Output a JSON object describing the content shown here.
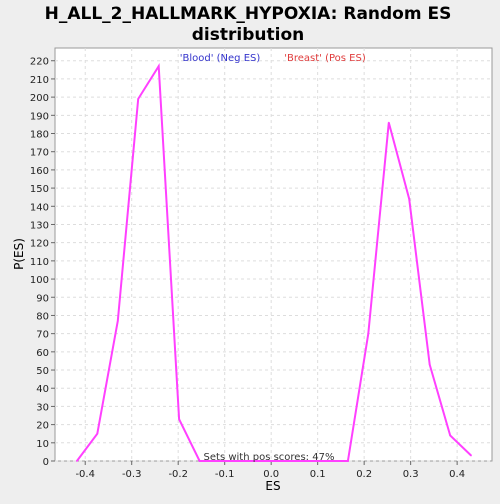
{
  "chart_data": {
    "type": "line",
    "title": "H_ALL_2_HALLMARK_HYPOXIA: Random ES distribution",
    "title_lines": [
      "H_ALL_2_HALLMARK_HYPOXIA: Random ES",
      "distribution"
    ],
    "xlabel": "ES",
    "ylabel": "P(ES)",
    "xlim": [
      -0.465,
      0.475
    ],
    "ylim": [
      0,
      227
    ],
    "x_ticks": [
      -0.4,
      -0.3,
      -0.2,
      -0.1,
      0.0,
      0.1,
      0.2,
      0.3,
      0.4
    ],
    "x_tick_labels": [
      "-0.4",
      "-0.3",
      "-0.2",
      "-0.1",
      "0.0",
      "0.1",
      "0.2",
      "0.3",
      "0.4"
    ],
    "y_ticks": [
      0,
      10,
      20,
      30,
      40,
      50,
      60,
      70,
      80,
      90,
      100,
      110,
      120,
      130,
      140,
      150,
      160,
      170,
      180,
      190,
      200,
      210,
      220
    ],
    "grid": true,
    "legend": [
      {
        "label": "'Blood' (Neg ES)",
        "color": "#3333cc"
      },
      {
        "label": "'Breast' (Pos ES)",
        "color": "#e03c3c"
      }
    ],
    "annotation": "Sets with pos scores: 47%",
    "series": [
      {
        "color": "#ff40ff",
        "x": [
          -0.418,
          -0.374,
          -0.33,
          -0.286,
          -0.242,
          -0.198,
          -0.154,
          -0.11,
          -0.066,
          -0.022,
          0.022,
          0.066,
          0.11,
          0.165,
          0.209,
          0.253,
          0.297,
          0.341,
          0.385,
          0.43
        ],
        "y": [
          0,
          15,
          77,
          199,
          217,
          23,
          0,
          0,
          0,
          0,
          0,
          0,
          0,
          0,
          70,
          186,
          144,
          53,
          14,
          3
        ]
      }
    ]
  }
}
